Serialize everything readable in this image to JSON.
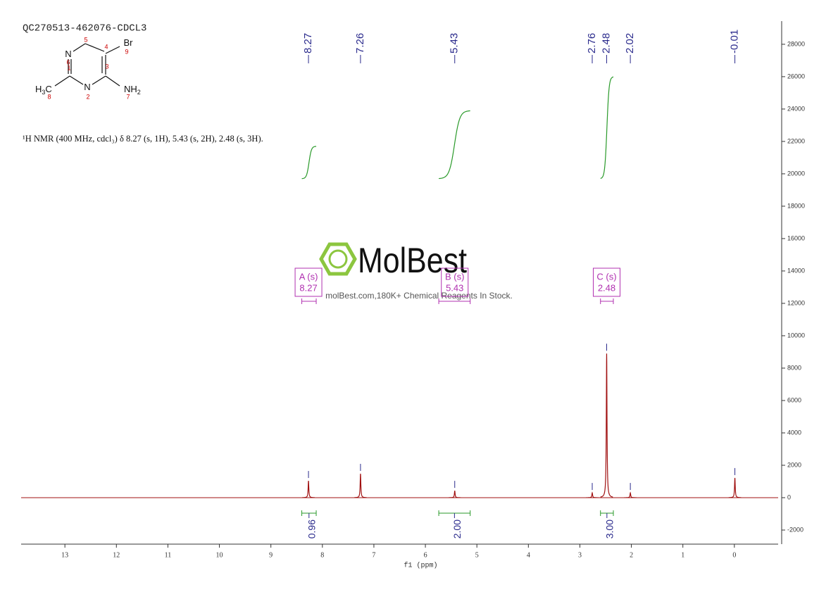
{
  "chart_data": {
    "type": "nmr",
    "title": "QC270513-462076-CDCL3",
    "description": "¹H NMR (400 MHz, cdcl₃) δ 8.27 (s, 1H), 5.43 (s, 2H), 2.48 (s, 3H).",
    "xlabel": "f1 (ppm)",
    "xlim": [
      13.85,
      -0.85
    ],
    "xticks": [
      13,
      12,
      11,
      10,
      9,
      8,
      7,
      6,
      5,
      4,
      3,
      2,
      1,
      0
    ],
    "ylim": [
      -2870,
      29430
    ],
    "yticks": [
      -2000,
      0,
      2000,
      4000,
      6000,
      8000,
      10000,
      12000,
      14000,
      16000,
      18000,
      20000,
      22000,
      24000,
      26000,
      28000
    ],
    "color": "#a01010",
    "peaks": {
      "x": [
        8.27,
        7.26,
        5.43,
        2.76,
        2.48,
        2.02,
        -0.01
      ],
      "values": [
        1040,
        1480,
        430,
        300,
        8900,
        300,
        1220
      ]
    },
    "multiplets": {
      "names": [
        "A (s)",
        "B (s)",
        "C (s)"
      ],
      "shifts": [
        8.27,
        5.43,
        2.48
      ],
      "ranges": [
        [
          8.4,
          8.12
        ],
        [
          5.74,
          5.13
        ],
        [
          2.6,
          2.35
        ]
      ],
      "values": [
        0.96,
        2,
        3
      ],
      "value_labels": [
        "0.96",
        "2.00",
        "3.00"
      ],
      "curve_start": [
        19700,
        19700,
        19700
      ],
      "curve_end": [
        21700,
        23900,
        26000
      ]
    },
    "molecule": {
      "atoms": [
        "N",
        "Br",
        "N",
        "NH2",
        "H3C"
      ],
      "atom_numbers": [
        1,
        2,
        3,
        4,
        5,
        6,
        7,
        8,
        9
      ]
    },
    "watermark": {
      "brand": "MolBest",
      "tagline": "molBest.com,180K+ Chemical Reagents In Stock."
    }
  }
}
